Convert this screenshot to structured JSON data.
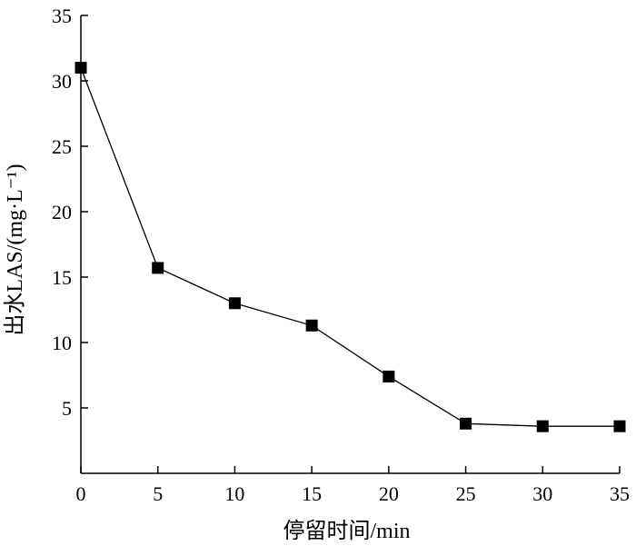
{
  "chart_data": {
    "type": "line",
    "title": "",
    "xlabel": "停留时间/min",
    "ylabel": "出水LAS/(mg·L⁻¹)",
    "xlim": [
      0,
      35
    ],
    "ylim": [
      0,
      35
    ],
    "x_ticks": [
      "0",
      "5",
      "10",
      "15",
      "20",
      "25",
      "30",
      "35"
    ],
    "y_ticks": [
      "5",
      "10",
      "15",
      "20",
      "25",
      "30",
      "35"
    ],
    "grid": false,
    "legend": "none",
    "marker": "filled-square",
    "color": "#000000",
    "series": [
      {
        "x": [
          0,
          5,
          10,
          15,
          20,
          25,
          30,
          35
        ],
        "values": [
          31.0,
          15.7,
          13.0,
          11.3,
          7.4,
          3.8,
          3.6,
          3.6
        ]
      }
    ]
  }
}
